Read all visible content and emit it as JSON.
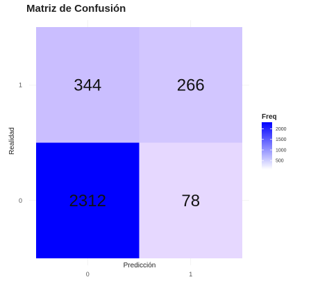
{
  "chart_data": {
    "type": "heatmap",
    "title": "Matriz de Confusión",
    "xlabel": "Predicción",
    "ylabel": "Realidad",
    "x_categories": [
      "0",
      "1"
    ],
    "y_categories": [
      "0",
      "1"
    ],
    "cells": [
      {
        "x": "0",
        "y": "1",
        "value": 344
      },
      {
        "x": "1",
        "y": "1",
        "value": 266
      },
      {
        "x": "0",
        "y": "0",
        "value": 2312
      },
      {
        "x": "1",
        "y": "0",
        "value": 78
      }
    ],
    "legend": {
      "title": "Freq",
      "ticks": [
        2000,
        1500,
        1000,
        500
      ],
      "range": [
        78,
        2312
      ],
      "low_color": "#ffffff",
      "high_color": "#0000ff"
    },
    "grid": true
  }
}
